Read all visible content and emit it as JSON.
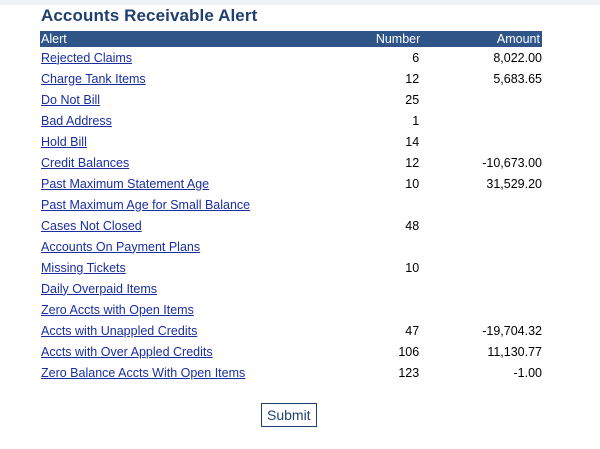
{
  "page_title": "Accounts Receivable Alert",
  "columns": {
    "alert": "Alert",
    "number": "Number",
    "amount": "Amount"
  },
  "rows": [
    {
      "alert": "Rejected Claims",
      "number": "6",
      "amount": "8,022.00"
    },
    {
      "alert": "Charge Tank Items",
      "number": "12",
      "amount": "5,683.65"
    },
    {
      "alert": "Do Not Bill",
      "number": "25",
      "amount": ""
    },
    {
      "alert": "Bad Address",
      "number": "1",
      "amount": ""
    },
    {
      "alert": "Hold Bill",
      "number": "14",
      "amount": ""
    },
    {
      "alert": "Credit Balances",
      "number": "12",
      "amount": "-10,673.00"
    },
    {
      "alert": "Past Maximum Statement Age",
      "number": "10",
      "amount": "31,529.20"
    },
    {
      "alert": "Past Maximum Age for Small Balance",
      "number": "",
      "amount": ""
    },
    {
      "alert": "Cases Not Closed",
      "number": "48",
      "amount": ""
    },
    {
      "alert": "Accounts On Payment Plans",
      "number": "",
      "amount": ""
    },
    {
      "alert": "Missing Tickets",
      "number": "10",
      "amount": ""
    },
    {
      "alert": "Daily Overpaid Items",
      "number": "",
      "amount": ""
    },
    {
      "alert": "Zero Accts with Open Items",
      "number": "",
      "amount": ""
    },
    {
      "alert": "Accts with Unappled Credits",
      "number": "47",
      "amount": "-19,704.32"
    },
    {
      "alert": "Accts with Over Appled Credits",
      "number": "106",
      "amount": "11,130.77"
    },
    {
      "alert": "Zero Balance Accts With Open Items",
      "number": "123",
      "amount": "-1.00"
    }
  ],
  "submit_label": "Submit",
  "colors": {
    "title": "#1f3f6e",
    "header_bg": "#2e5488",
    "link": "#1a2ea0"
  }
}
